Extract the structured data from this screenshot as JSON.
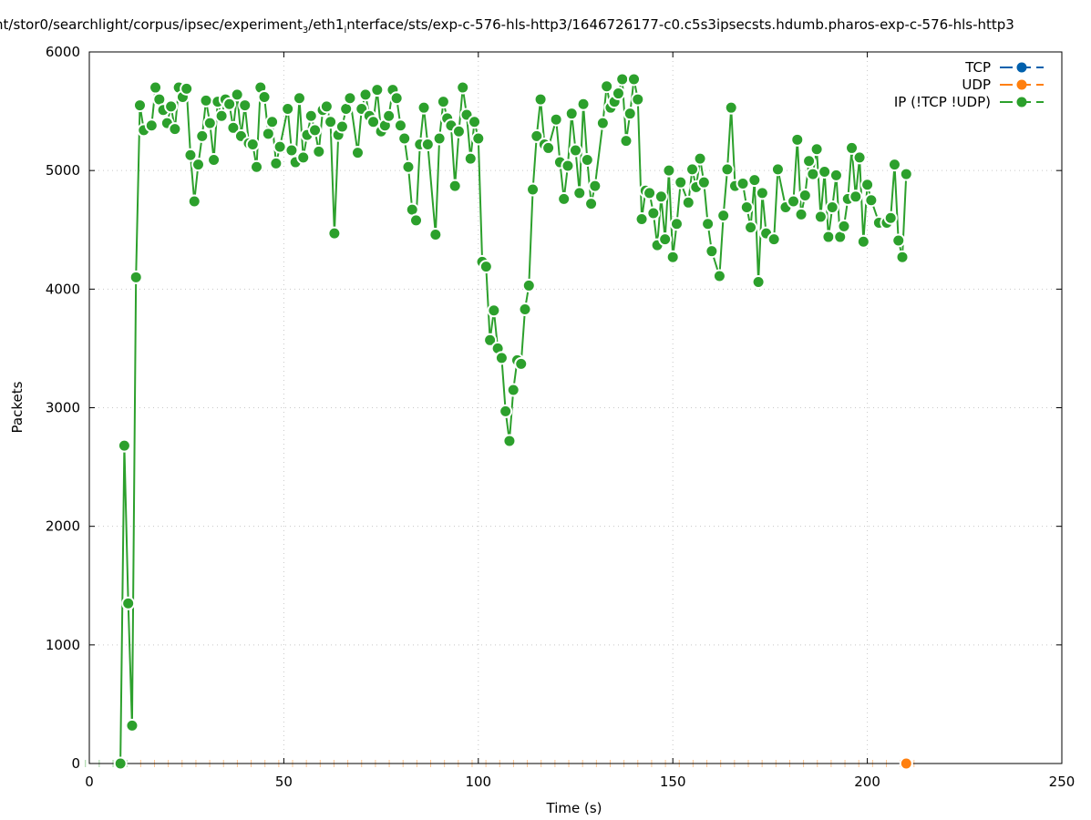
{
  "chart_data": {
    "type": "line",
    "title_parts": [
      "nt/stor0/searchlight/corpus/ipsec/experiment",
      "3",
      "/eth1",
      "i",
      "nterface/sts/exp-c-576-hls-http3/1646726177-c0.c5s3ipsecsts.hdumb.pharos-exp-c-576-hls-http3"
    ],
    "xlabel": "Time (s)",
    "ylabel": "Packets",
    "xlim": [
      0,
      250
    ],
    "ylim": [
      0,
      6000
    ],
    "xticks": [
      0,
      50,
      100,
      150,
      200,
      250
    ],
    "yticks": [
      0,
      1000,
      2000,
      3000,
      4000,
      5000,
      6000
    ],
    "grid": true,
    "legend_position": "top-right",
    "series": [
      {
        "name": "TCP",
        "color": "#0060ad",
        "points": []
      },
      {
        "name": "UDP",
        "color": "#ff7f0e",
        "points": [
          [
            210,
            0
          ]
        ]
      },
      {
        "name": "IP (!TCP  !UDP)",
        "color": "#2ca02c",
        "points": [
          [
            8,
            0
          ],
          [
            9,
            2680
          ],
          [
            10,
            1350
          ],
          [
            11,
            320
          ],
          [
            12,
            4100
          ],
          [
            13,
            5550
          ],
          [
            14,
            5340
          ],
          [
            16,
            5380
          ],
          [
            17,
            5700
          ],
          [
            18,
            5600
          ],
          [
            19,
            5510
          ],
          [
            20,
            5400
          ],
          [
            21,
            5540
          ],
          [
            22,
            5350
          ],
          [
            23,
            5700
          ],
          [
            24,
            5620
          ],
          [
            25,
            5690
          ],
          [
            26,
            5130
          ],
          [
            27,
            4740
          ],
          [
            28,
            5050
          ],
          [
            29,
            5290
          ],
          [
            30,
            5590
          ],
          [
            31,
            5400
          ],
          [
            32,
            5090
          ],
          [
            33,
            5580
          ],
          [
            34,
            5460
          ],
          [
            35,
            5600
          ],
          [
            36,
            5560
          ],
          [
            37,
            5360
          ],
          [
            38,
            5640
          ],
          [
            39,
            5290
          ],
          [
            40,
            5550
          ],
          [
            41,
            5230
          ],
          [
            42,
            5220
          ],
          [
            43,
            5030
          ],
          [
            44,
            5700
          ],
          [
            45,
            5620
          ],
          [
            46,
            5310
          ],
          [
            47,
            5410
          ],
          [
            48,
            5060
          ],
          [
            49,
            5200
          ],
          [
            51,
            5520
          ],
          [
            52,
            5170
          ],
          [
            53,
            5070
          ],
          [
            54,
            5610
          ],
          [
            55,
            5110
          ],
          [
            56,
            5300
          ],
          [
            57,
            5460
          ],
          [
            58,
            5340
          ],
          [
            59,
            5160
          ],
          [
            60,
            5510
          ],
          [
            61,
            5540
          ],
          [
            62,
            5410
          ],
          [
            63,
            4470
          ],
          [
            64,
            5300
          ],
          [
            65,
            5370
          ],
          [
            66,
            5520
          ],
          [
            67,
            5610
          ],
          [
            69,
            5150
          ],
          [
            70,
            5520
          ],
          [
            71,
            5640
          ],
          [
            72,
            5460
          ],
          [
            73,
            5410
          ],
          [
            74,
            5680
          ],
          [
            75,
            5330
          ],
          [
            76,
            5380
          ],
          [
            77,
            5460
          ],
          [
            78,
            5680
          ],
          [
            79,
            5610
          ],
          [
            80,
            5380
          ],
          [
            81,
            5270
          ],
          [
            82,
            5030
          ],
          [
            83,
            4670
          ],
          [
            84,
            4580
          ],
          [
            85,
            5220
          ],
          [
            86,
            5530
          ],
          [
            87,
            5220
          ],
          [
            89,
            4460
          ],
          [
            90,
            5270
          ],
          [
            91,
            5580
          ],
          [
            92,
            5440
          ],
          [
            93,
            5380
          ],
          [
            94,
            4870
          ],
          [
            95,
            5330
          ],
          [
            96,
            5700
          ],
          [
            97,
            5470
          ],
          [
            98,
            5100
          ],
          [
            99,
            5410
          ],
          [
            100,
            5270
          ],
          [
            101,
            4230
          ],
          [
            102,
            4190
          ],
          [
            103,
            3570
          ],
          [
            104,
            3820
          ],
          [
            105,
            3500
          ],
          [
            106,
            3420
          ],
          [
            107,
            2970
          ],
          [
            108,
            2720
          ],
          [
            109,
            3150
          ],
          [
            110,
            3400
          ],
          [
            111,
            3370
          ],
          [
            112,
            3830
          ],
          [
            113,
            4030
          ],
          [
            114,
            4840
          ],
          [
            115,
            5290
          ],
          [
            116,
            5600
          ],
          [
            117,
            5220
          ],
          [
            118,
            5190
          ],
          [
            120,
            5430
          ],
          [
            121,
            5070
          ],
          [
            122,
            4760
          ],
          [
            123,
            5040
          ],
          [
            124,
            5480
          ],
          [
            125,
            5170
          ],
          [
            126,
            4810
          ],
          [
            127,
            5560
          ],
          [
            128,
            5090
          ],
          [
            129,
            4720
          ],
          [
            130,
            4870
          ],
          [
            132,
            5400
          ],
          [
            133,
            5710
          ],
          [
            134,
            5530
          ],
          [
            135,
            5580
          ],
          [
            136,
            5650
          ],
          [
            137,
            5770
          ],
          [
            138,
            5250
          ],
          [
            139,
            5480
          ],
          [
            140,
            5770
          ],
          [
            141,
            5600
          ],
          [
            142,
            4590
          ],
          [
            143,
            4830
          ],
          [
            144,
            4810
          ],
          [
            145,
            4640
          ],
          [
            146,
            4370
          ],
          [
            147,
            4780
          ],
          [
            148,
            4420
          ],
          [
            149,
            5000
          ],
          [
            150,
            4270
          ],
          [
            151,
            4550
          ],
          [
            152,
            4900
          ],
          [
            154,
            4730
          ],
          [
            155,
            5010
          ],
          [
            156,
            4860
          ],
          [
            157,
            5100
          ],
          [
            158,
            4900
          ],
          [
            159,
            4550
          ],
          [
            160,
            4320
          ],
          [
            162,
            4110
          ],
          [
            163,
            4620
          ],
          [
            164,
            5010
          ],
          [
            165,
            5530
          ],
          [
            166,
            4870
          ],
          [
            168,
            4890
          ],
          [
            169,
            4690
          ],
          [
            170,
            4520
          ],
          [
            171,
            4920
          ],
          [
            172,
            4060
          ],
          [
            173,
            4810
          ],
          [
            174,
            4470
          ],
          [
            176,
            4420
          ],
          [
            177,
            5010
          ],
          [
            179,
            4690
          ],
          [
            181,
            4740
          ],
          [
            182,
            5260
          ],
          [
            183,
            4630
          ],
          [
            184,
            4790
          ],
          [
            185,
            5080
          ],
          [
            186,
            4970
          ],
          [
            187,
            5180
          ],
          [
            188,
            4610
          ],
          [
            189,
            4990
          ],
          [
            190,
            4440
          ],
          [
            191,
            4690
          ],
          [
            192,
            4960
          ],
          [
            193,
            4440
          ],
          [
            194,
            4530
          ],
          [
            195,
            4760
          ],
          [
            196,
            5190
          ],
          [
            197,
            4780
          ],
          [
            198,
            5110
          ],
          [
            199,
            4400
          ],
          [
            200,
            4880
          ],
          [
            201,
            4750
          ],
          [
            203,
            4560
          ],
          [
            205,
            4560
          ],
          [
            206,
            4600
          ],
          [
            207,
            5050
          ],
          [
            208,
            4410
          ],
          [
            209,
            4270
          ],
          [
            210,
            4970
          ]
        ]
      }
    ]
  }
}
